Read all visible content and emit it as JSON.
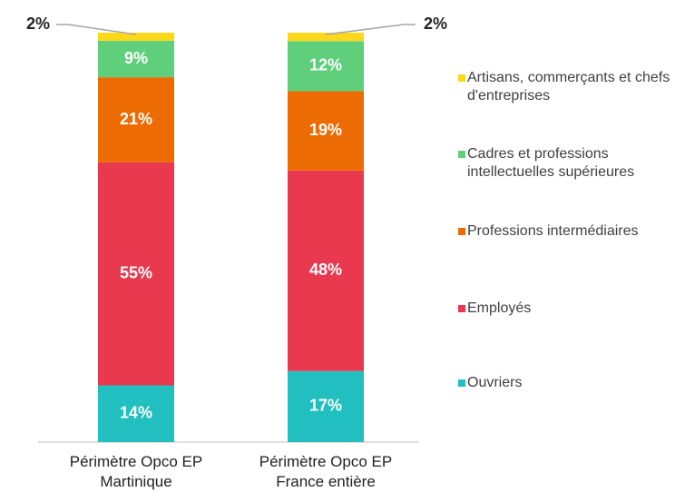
{
  "chart_data": {
    "type": "stacked_bar",
    "categories": [
      "Périmètre Opco EP Martinique",
      "Périmètre Opco EP France entière"
    ],
    "series": [
      {
        "name": "Ouvriers",
        "color": "#21bfc0",
        "values": [
          14,
          17
        ],
        "value_labels": [
          "14%",
          "17%"
        ]
      },
      {
        "name": "Employés",
        "color": "#e8394f",
        "values": [
          55,
          48
        ],
        "value_labels": [
          "55%",
          "48%"
        ]
      },
      {
        "name": "Professions intermédiaires",
        "color": "#ec6c03",
        "values": [
          21,
          19
        ],
        "value_labels": [
          "21%",
          "19%"
        ]
      },
      {
        "name": "Cadres et professions intellectuelles supérieures",
        "color": "#5fcf7b",
        "values": [
          9,
          12
        ],
        "value_labels": [
          "9%",
          "12%"
        ]
      },
      {
        "name": "Artisans, commerçants et chefs d'entreprises",
        "color": "#fdd819",
        "values": [
          2,
          2
        ],
        "value_labels": [
          "2%",
          "2%"
        ]
      }
    ]
  }
}
